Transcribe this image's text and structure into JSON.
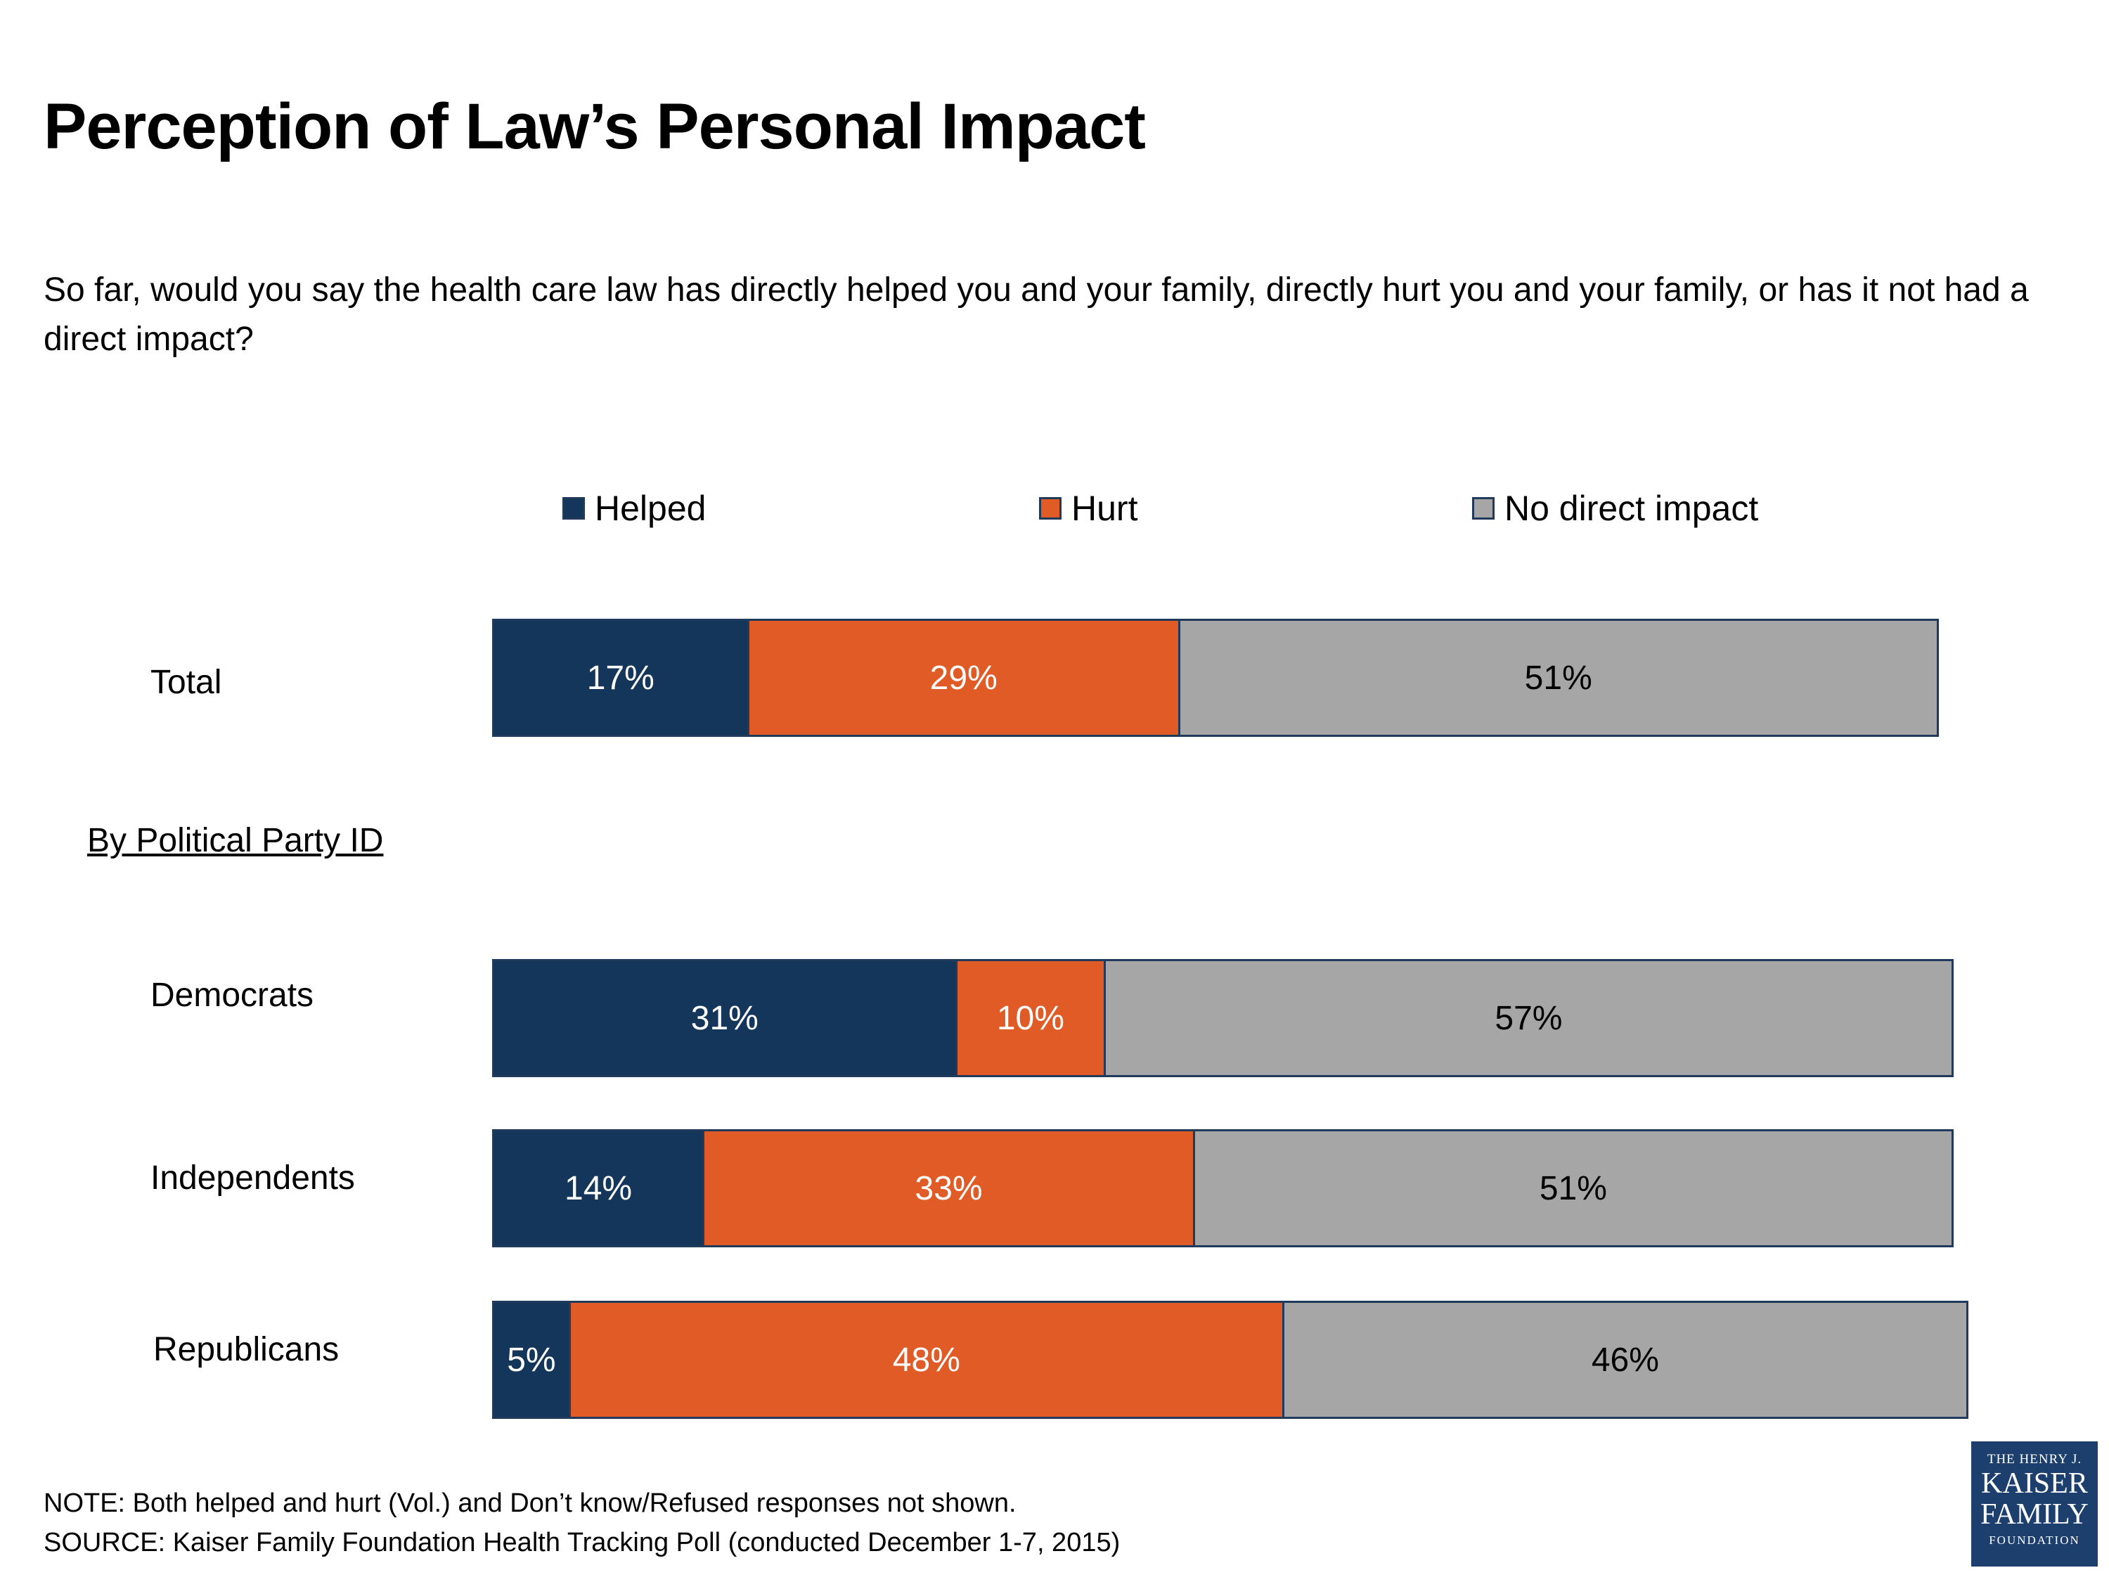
{
  "title": "Perception of Law’s Personal Impact",
  "subtitle": "So far, would you say the health care law has directly helped you and your family, directly hurt you and your family, or has it not had a direct impact?",
  "section_label": "By Political Party ID",
  "colors": {
    "helped": "#14365a",
    "hurt": "#e05b26",
    "none": "#a6a6a6",
    "border": "#1f3a5a"
  },
  "chart_data": {
    "type": "bar",
    "orientation": "horizontal",
    "stacked": true,
    "legend_position": "top",
    "categories": [
      "Total",
      "Democrats",
      "Independents",
      "Republicans"
    ],
    "series": [
      {
        "name": "Helped",
        "values": [
          17,
          31,
          14,
          5
        ],
        "labels": [
          "17%",
          "31%",
          "14%",
          "5%"
        ]
      },
      {
        "name": "Hurt",
        "values": [
          29,
          10,
          33,
          48
        ],
        "labels": [
          "29%",
          "10%",
          "33%",
          "48%"
        ]
      },
      {
        "name": "No direct impact",
        "values": [
          51,
          57,
          51,
          46
        ],
        "labels": [
          "51%",
          "57%",
          "51%",
          "46%"
        ]
      }
    ]
  },
  "footer": {
    "note": "NOTE: Both helped and hurt (Vol.) and Don’t know/Refused responses not shown.",
    "source": "SOURCE: Kaiser Family Foundation Health Tracking Poll (conducted December 1-7, 2015)"
  },
  "logo": {
    "line1": "THE HENRY J.",
    "line2": "KAISER",
    "line3": "FAMILY",
    "line4": "FOUNDATION"
  }
}
